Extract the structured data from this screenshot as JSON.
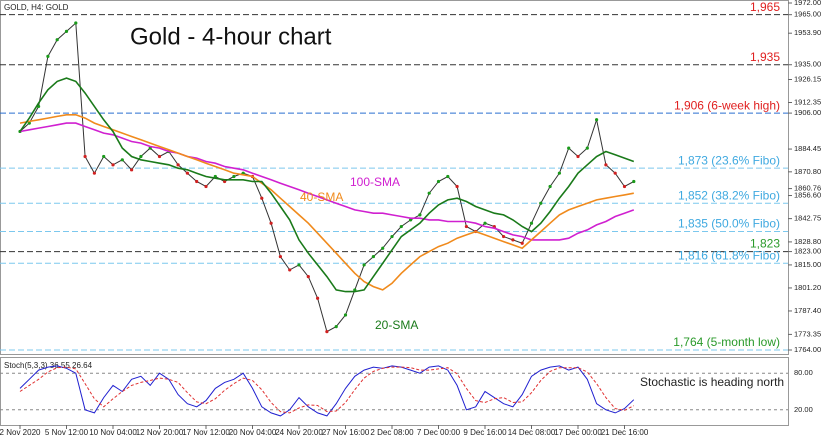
{
  "chart_data": {
    "type": "line",
    "symbol": "GOLD, H4: GOLD",
    "title": "Gold - 4-hour chart",
    "categories": [
      "2 Nov 2020",
      null,
      null,
      null,
      null,
      "5 Nov 12:00",
      null,
      null,
      null,
      null,
      "10 Nov 04:00",
      null,
      null,
      null,
      null,
      "12 Nov 20:00",
      null,
      null,
      null,
      null,
      "17 Nov 12:00",
      null,
      null,
      null,
      null,
      "20 Nov 04:00",
      null,
      null,
      null,
      null,
      "24 Nov 20:00",
      null,
      null,
      null,
      null,
      "27 Nov 16:00",
      null,
      null,
      null,
      null,
      "2 Dec 08:00",
      null,
      null,
      null,
      null,
      "7 Dec 00:00",
      null,
      null,
      null,
      null,
      "9 Dec 16:00",
      null,
      null,
      null,
      null,
      "14 Dec 08:00",
      null,
      null,
      null,
      null,
      "17 Dec 00:00",
      null,
      null,
      null,
      null,
      "21 Dec 16:00",
      null
    ],
    "ylim": [
      1764,
      1972
    ],
    "yticks": [
      {
        "value": 1972,
        "label": "1972.00"
      },
      {
        "value": 1965,
        "label": "1965.00"
      },
      {
        "value": 1953.9,
        "label": "1953.90"
      },
      {
        "value": 1935,
        "label": "1935.00"
      },
      {
        "value": 1926.15,
        "label": "1926.15"
      },
      {
        "value": 1912.35,
        "label": "1912.35"
      },
      {
        "value": 1906,
        "label": "1906.00"
      },
      {
        "value": 1884.45,
        "label": "1884.45"
      },
      {
        "value": 1870.8,
        "label": "1870.80"
      },
      {
        "value": 1860.76,
        "label": "1860.76"
      },
      {
        "value": 1856.6,
        "label": "1856.60"
      },
      {
        "value": 1842.75,
        "label": "1842.75"
      },
      {
        "value": 1828.8,
        "label": "1828.80"
      },
      {
        "value": 1823,
        "label": "1823.00"
      },
      {
        "value": 1815,
        "label": "1815.00"
      },
      {
        "value": 1801.2,
        "label": "1801.20"
      },
      {
        "value": 1787.4,
        "label": "1787.40"
      },
      {
        "value": 1773.35,
        "label": "1773.35"
      },
      {
        "value": 1764,
        "label": "1764.00"
      }
    ],
    "series": [
      {
        "color": "#333333",
        "values": [
          1895,
          1900,
          1910,
          1940,
          1950,
          1955,
          1960,
          1880,
          1870,
          1880,
          1875,
          1878,
          1872,
          1880,
          1885,
          1880,
          1883,
          1875,
          1870,
          1865,
          1862,
          1868,
          1865,
          1868,
          1870,
          1868,
          1855,
          1840,
          1820,
          1812,
          1815,
          1808,
          1795,
          1775,
          1778,
          1785,
          1800,
          1815,
          1820,
          1825,
          1832,
          1838,
          1842,
          1845,
          1858,
          1865,
          1868,
          1862,
          1838,
          1835,
          1840,
          1838,
          1832,
          1830,
          1828,
          1840,
          1852,
          1862,
          1870,
          1885,
          1880,
          1885,
          1902,
          1875,
          1870,
          1862,
          1865
        ]
      },
      {
        "name": "100-SMA",
        "color": "#d020d0",
        "values": [
          1895,
          1896,
          1897,
          1898,
          1899,
          1900,
          1900,
          1898,
          1896,
          1894,
          1893,
          1891,
          1889,
          1888,
          1886,
          1885,
          1883,
          1882,
          1880,
          1879,
          1877,
          1876,
          1874,
          1873,
          1872,
          1870,
          1868,
          1866,
          1864,
          1862,
          1860,
          1858,
          1856,
          1854,
          1852,
          1850,
          1848,
          1847,
          1846,
          1846,
          1845,
          1844,
          1843,
          1843,
          1842,
          1842,
          1841,
          1841,
          1841,
          1840,
          1838,
          1837,
          1835,
          1833,
          1832,
          1830,
          1830,
          1830,
          1830,
          1831,
          1834,
          1836,
          1839,
          1841,
          1844,
          1846,
          1848
        ]
      },
      {
        "name": "40-SMA",
        "color": "#f08a1c",
        "values": [
          1900,
          1901,
          1902,
          1903,
          1904,
          1905,
          1905,
          1903,
          1900,
          1898,
          1896,
          1894,
          1892,
          1890,
          1888,
          1886,
          1884,
          1882,
          1880,
          1878,
          1876,
          1874,
          1872,
          1870,
          1869,
          1868,
          1864,
          1860,
          1855,
          1850,
          1845,
          1840,
          1834,
          1828,
          1822,
          1816,
          1810,
          1805,
          1802,
          1800,
          1804,
          1810,
          1815,
          1820,
          1823,
          1826,
          1828,
          1831,
          1833,
          1835,
          1833,
          1831,
          1829,
          1827,
          1825,
          1830,
          1835,
          1840,
          1845,
          1848,
          1850,
          1852,
          1854,
          1855,
          1856,
          1857,
          1858
        ]
      },
      {
        "name": "20-SMA",
        "color": "#1a7a1a",
        "values": [
          1895,
          1903,
          1912,
          1920,
          1925,
          1927,
          1925,
          1918,
          1910,
          1902,
          1895,
          1885,
          1880,
          1878,
          1877,
          1876,
          1875,
          1873,
          1872,
          1870,
          1868,
          1867,
          1866,
          1866,
          1866,
          1865,
          1865,
          1858,
          1850,
          1842,
          1830,
          1822,
          1815,
          1808,
          1800,
          1799,
          1799,
          1800,
          1808,
          1816,
          1824,
          1832,
          1836,
          1840,
          1846,
          1851,
          1854,
          1855,
          1853,
          1850,
          1848,
          1846,
          1845,
          1842,
          1838,
          1835,
          1840,
          1847,
          1855,
          1862,
          1870,
          1875,
          1880,
          1883,
          1881,
          1879,
          1877
        ]
      }
    ],
    "levels": [
      {
        "value": 1965,
        "label": "1,965",
        "color": "#e02020",
        "line_color": "#333333"
      },
      {
        "value": 1935,
        "label": "1,935",
        "color": "#e02020",
        "line_color": "#333333"
      },
      {
        "value": 1906,
        "label": "1,906 (6-week high)",
        "color": "#e02020",
        "line_color": "#2a6fd0"
      },
      {
        "value": 1873,
        "label": "1,873 (23.6% Fibo)",
        "color": "#3fa9e0",
        "line_color": "#7cc8ee"
      },
      {
        "value": 1852,
        "label": "1,852 (38.2% Fibo)",
        "color": "#3fa9e0",
        "line_color": "#7cc8ee"
      },
      {
        "value": 1835,
        "label": "1,835 (50.0% Fibo)",
        "color": "#3fa9e0",
        "line_color": "#7cc8ee"
      },
      {
        "value": 1823,
        "label": "1,823",
        "color": "#2a9a2a",
        "line_color": "#333333"
      },
      {
        "value": 1816,
        "label": "1,816 (61.8% Fibo)",
        "color": "#3fa9e0",
        "line_color": "#7cc8ee"
      },
      {
        "value": 1764,
        "label": "1,764 (5-month low)",
        "color": "#2a9a2a",
        "line_color": "#7cc8ee"
      }
    ],
    "stochastic": {
      "label": "Stoch(5,3,3) 36.55 26.64",
      "annotation": "Stochastic is heading north",
      "ylim": [
        0,
        100
      ],
      "yticks": [
        {
          "value": 80,
          "label": "80.00"
        },
        {
          "value": 20,
          "label": "20.00"
        }
      ],
      "series": [
        {
          "color": "#2020d0",
          "values": [
            55,
            70,
            85,
            90,
            92,
            88,
            80,
            20,
            15,
            40,
            60,
            50,
            70,
            75,
            60,
            80,
            70,
            45,
            30,
            25,
            35,
            55,
            65,
            70,
            80,
            55,
            25,
            15,
            10,
            20,
            40,
            25,
            15,
            10,
            30,
            55,
            75,
            85,
            90,
            88,
            92,
            90,
            85,
            80,
            90,
            92,
            85,
            60,
            20,
            25,
            50,
            40,
            30,
            25,
            45,
            75,
            85,
            90,
            92,
            85,
            90,
            70,
            30,
            20,
            15,
            22,
            36.55
          ]
        },
        {
          "color": "#e03030",
          "values": [
            50,
            60,
            70,
            82,
            89,
            90,
            87,
            63,
            38,
            25,
            38,
            50,
            60,
            65,
            68,
            72,
            70,
            65,
            48,
            33,
            30,
            38,
            52,
            63,
            72,
            68,
            53,
            32,
            17,
            15,
            23,
            28,
            27,
            17,
            18,
            32,
            53,
            72,
            83,
            88,
            90,
            90,
            89,
            85,
            85,
            87,
            89,
            79,
            55,
            35,
            32,
            38,
            40,
            32,
            33,
            48,
            68,
            83,
            89,
            89,
            89,
            82,
            63,
            40,
            22,
            19,
            26.64
          ]
        }
      ]
    }
  }
}
